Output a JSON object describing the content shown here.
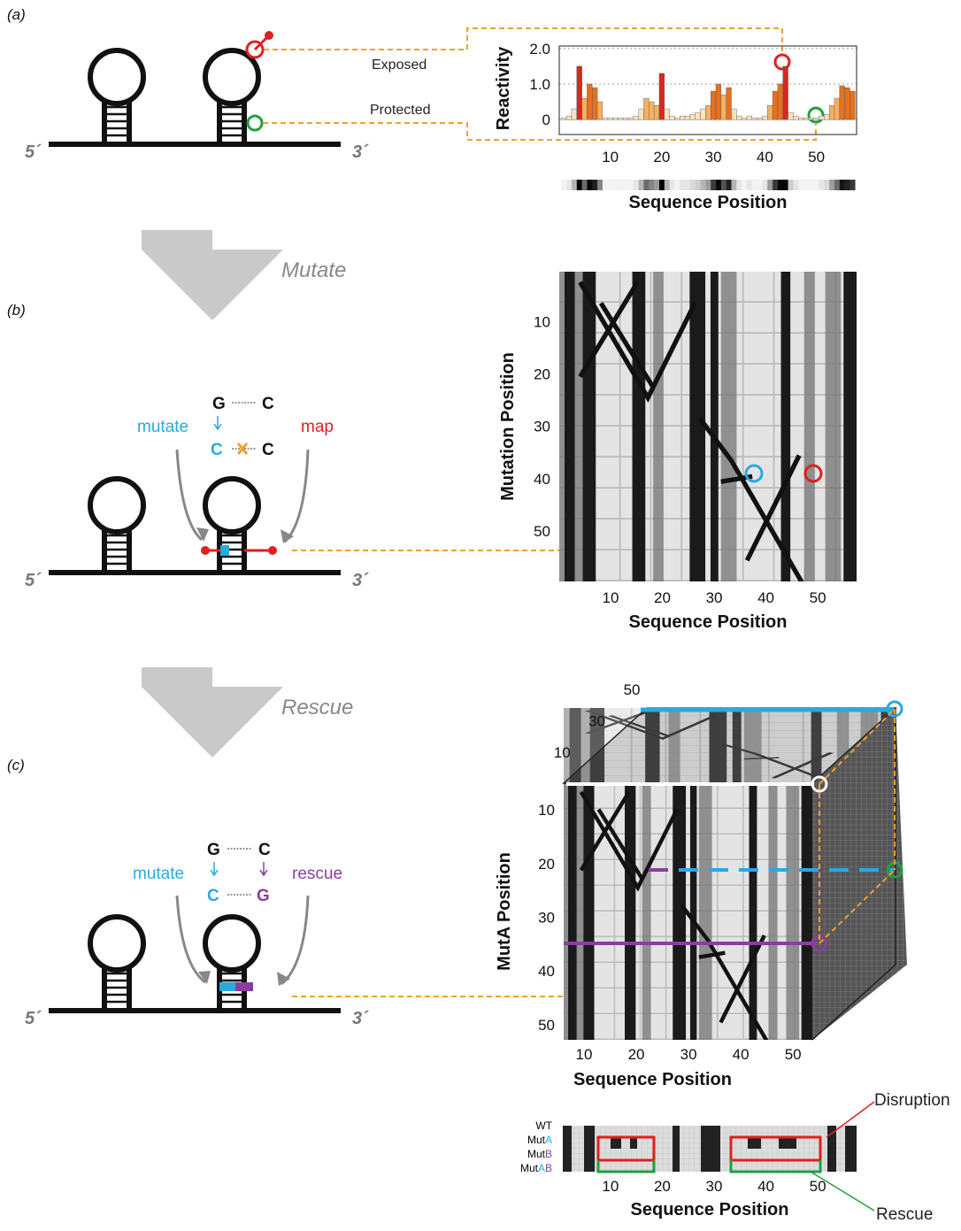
{
  "figure": {
    "panel_labels": [
      "(a)",
      "(b)",
      "(c)"
    ],
    "five_prime": "5´",
    "three_prime": "3´",
    "exposed": "Exposed",
    "protected": "Protected",
    "steps": [
      "Mutate",
      "Rescue"
    ],
    "panel_b": {
      "pair_top": [
        "G",
        "C"
      ],
      "pair_bottom": [
        "C",
        "C"
      ],
      "mutate": "mutate",
      "map": "map"
    },
    "panel_c": {
      "pair_top": [
        "G",
        "C"
      ],
      "pair_bottom": [
        "C",
        "G"
      ],
      "mutate": "mutate",
      "rescue": "rescue"
    },
    "strip_rows": [
      [
        "WT"
      ],
      [
        "Mut",
        "A"
      ],
      [
        "Mut",
        "B"
      ],
      [
        "Mut",
        [
          "A",
          "B"
        ]
      ]
    ],
    "disruption": "Disruption",
    "rescue_label": "Rescue"
  },
  "chart_data": [
    {
      "type": "bar",
      "ylabel": "Reactivity",
      "xlabel": "Sequence Position",
      "x": [
        1,
        2,
        3,
        4,
        5,
        6,
        7,
        8,
        9,
        10,
        11,
        12,
        13,
        14,
        15,
        16,
        17,
        18,
        19,
        20,
        21,
        22,
        23,
        24,
        25,
        26,
        27,
        28,
        29,
        30,
        31,
        32,
        33,
        34,
        35,
        36,
        37,
        38,
        39,
        40,
        41,
        42,
        43,
        44,
        45,
        46,
        47,
        48,
        49,
        50,
        51,
        52,
        53,
        54,
        55,
        56,
        57
      ],
      "values": [
        0.05,
        0.1,
        0.3,
        1.5,
        0.6,
        1.0,
        0.9,
        0.5,
        0.05,
        0.05,
        0.05,
        0.05,
        0.05,
        0.05,
        0.1,
        0.3,
        0.6,
        0.5,
        0.4,
        1.3,
        0.3,
        0.1,
        0.05,
        0.1,
        0.1,
        0.15,
        0.2,
        0.3,
        0.4,
        0.8,
        1.0,
        0.7,
        0.9,
        0.3,
        0.1,
        0.05,
        0.1,
        0.05,
        0.05,
        0.1,
        0.4,
        0.8,
        1.0,
        1.5,
        0.2,
        0.1,
        0.05,
        0.05,
        0.05,
        0.05,
        0.1,
        0.15,
        0.4,
        0.6,
        0.95,
        0.9,
        0.8
      ],
      "colormap": [
        "#fbe3c0",
        "#f5b060",
        "#e67020",
        "#d42a20"
      ],
      "xlim": [
        0.1,
        57.8
      ],
      "ylim": [
        -0.42,
        2.07
      ],
      "xticks": [
        10,
        20,
        30,
        40,
        50
      ],
      "yticks": [
        0,
        {
          "value": 1,
          "label": "1.0"
        },
        {
          "value": 2,
          "label": "2.0"
        }
      ],
      "grid": true
    },
    {
      "type": "heatmap",
      "ylabel": "Mutation Position",
      "xlabel": "Sequence Position",
      "xlim": [
        0.1,
        57.5
      ],
      "ylim": [
        59.6,
        0.5
      ],
      "xticks": [
        10,
        20,
        30,
        40,
        50
      ],
      "yticks": [
        10,
        20,
        30,
        40,
        50
      ]
    },
    {
      "type": "cube",
      "ylabel": "MutA Position",
      "xlabel": "Sequence Position",
      "xlim": [
        6.1,
        53.7
      ],
      "ylim": [
        52.8,
        5.06
      ],
      "zlim": [
        5.06,
        52.8
      ],
      "xticks": [
        10,
        20,
        30,
        40,
        50
      ],
      "yticks": [
        10,
        20,
        30,
        40,
        50
      ],
      "zticks": [
        10,
        30,
        50
      ]
    },
    {
      "type": "strip",
      "xlabel": "Sequence Position",
      "xlim": [
        0.8,
        57.5
      ],
      "xticks": [
        10,
        20,
        30,
        40,
        50
      ]
    }
  ]
}
